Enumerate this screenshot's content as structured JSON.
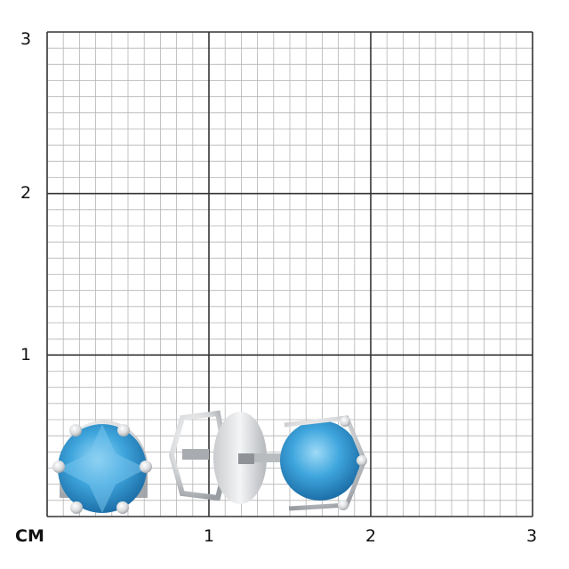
{
  "grid": {
    "unit_label": "СМ",
    "x_ticks": [
      "1",
      "2",
      "3"
    ],
    "y_ticks": [
      "1",
      "2",
      "3"
    ],
    "range_cm": [
      0,
      3
    ],
    "minor_divisions_per_cm": 10,
    "major_line_color": "#333333",
    "minor_line_color": "#b5b5b5"
  },
  "product": {
    "item": "stud earrings",
    "stone_color": "#3fa6dd",
    "metal_color": "#d8dadc"
  }
}
